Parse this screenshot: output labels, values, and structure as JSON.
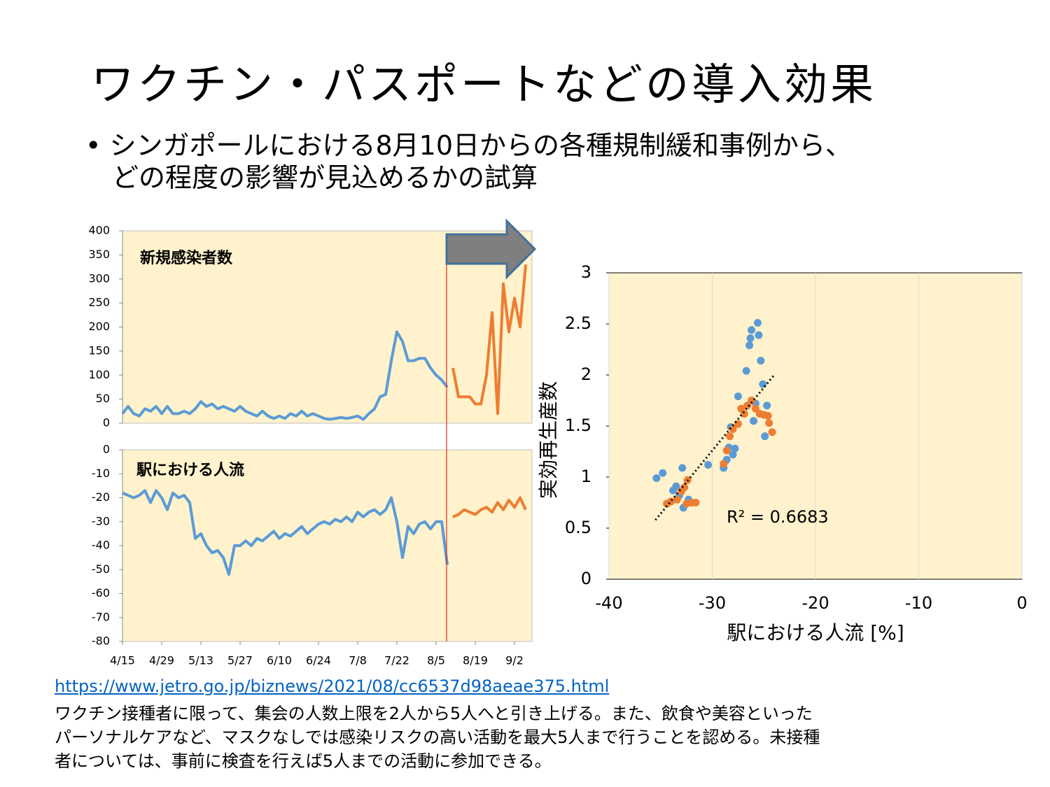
{
  "title": "ワクチン・パスポートなどの導入効果",
  "bullet": [
    "シンガポールにおける8月10日からの各種規制緩和事例から、",
    "どの程度の影響が見込めるかの試算"
  ],
  "link": "https://www.jetro.go.jp/biznews/2021/08/cc6537d98aeae375.html",
  "note": [
    "ワクチン接種者に限って、集会の人数上限を2人から5人へと引き上げる。また、飲食や美容といった",
    "パーソナルケアなど、マスクなしでは感染リスクの高い活動を最大5人まで行うことを認める。未接種",
    "者については、事前に検査を行えば5人までの活動に参加できる。"
  ],
  "chart_data": [
    {
      "type": "line",
      "title": "新規感染者数",
      "ylim": [
        0,
        400
      ],
      "yticks": [
        0,
        50,
        100,
        150,
        200,
        250,
        300,
        350,
        400
      ],
      "background": "#fff2cc",
      "series": [
        {
          "color": "#5b9bd5",
          "values": [
            20,
            35,
            20,
            15,
            30,
            25,
            35,
            20,
            35,
            20,
            20,
            25,
            20,
            30,
            45,
            35,
            40,
            30,
            35,
            30,
            25,
            35,
            25,
            20,
            15,
            25,
            15,
            10,
            15,
            10,
            20,
            15,
            25,
            15,
            20,
            15,
            10,
            8,
            10,
            12,
            10,
            12,
            15,
            8,
            20,
            30,
            55,
            60,
            130,
            190,
            170,
            130,
            130,
            135,
            135,
            115,
            100,
            90,
            75,
            null,
            null,
            null,
            null,
            null,
            null,
            null,
            null,
            null,
            null,
            null,
            null,
            null,
            null
          ]
        },
        {
          "color": "#ed7d31",
          "values": [
            null,
            null,
            null,
            null,
            null,
            null,
            null,
            null,
            null,
            null,
            null,
            null,
            null,
            null,
            null,
            null,
            null,
            null,
            null,
            null,
            null,
            null,
            null,
            null,
            null,
            null,
            null,
            null,
            null,
            null,
            null,
            null,
            null,
            null,
            null,
            null,
            null,
            null,
            null,
            null,
            null,
            null,
            null,
            null,
            null,
            null,
            null,
            null,
            null,
            null,
            null,
            null,
            null,
            null,
            null,
            null,
            null,
            null,
            null,
            115,
            55,
            55,
            55,
            40,
            40,
            100,
            230,
            20,
            290,
            190,
            260,
            200,
            330
          ]
        }
      ]
    },
    {
      "type": "line",
      "title": "駅における人流",
      "ylim": [
        -80,
        0
      ],
      "yticks": [
        -80,
        -70,
        -60,
        -50,
        -40,
        -30,
        -20,
        -10,
        0
      ],
      "background": "#fff2cc",
      "categories": [
        "4/15",
        null,
        null,
        null,
        null,
        null,
        null,
        "4/29",
        null,
        null,
        null,
        null,
        null,
        null,
        "5/13",
        null,
        null,
        null,
        null,
        null,
        null,
        "5/27",
        null,
        null,
        null,
        null,
        null,
        null,
        "6/10",
        null,
        null,
        null,
        null,
        null,
        null,
        "6/24",
        null,
        null,
        null,
        null,
        null,
        null,
        "7/8",
        null,
        null,
        null,
        null,
        null,
        null,
        "7/22",
        null,
        null,
        null,
        null,
        null,
        null,
        "8/5",
        null,
        null,
        null,
        null,
        null,
        null,
        "8/19",
        null,
        null,
        null,
        null,
        null,
        null,
        "9/2",
        null,
        null
      ],
      "series": [
        {
          "color": "#5b9bd5",
          "values": [
            -18,
            -19,
            -20,
            -19,
            -17,
            -22,
            -17,
            -20,
            -25,
            -18,
            -20,
            -19,
            -22,
            -37,
            -35,
            -40,
            -43,
            -42,
            -45,
            -52,
            -40,
            -40,
            -38,
            -40,
            -37,
            -38,
            -36,
            -34,
            -37,
            -35,
            -36,
            -34,
            -32,
            -35,
            -33,
            -31,
            -30,
            -31,
            -29,
            -30,
            -28,
            -30,
            -26,
            -28,
            -26,
            -25,
            -27,
            -25,
            -20,
            -30,
            -45,
            -32,
            -35,
            -31,
            -30,
            -33,
            -30,
            -30,
            -48,
            null,
            null,
            null,
            null,
            null,
            null,
            null,
            null,
            null,
            null,
            null,
            null,
            null,
            null
          ]
        },
        {
          "color": "#ed7d31",
          "values": [
            null,
            null,
            null,
            null,
            null,
            null,
            null,
            null,
            null,
            null,
            null,
            null,
            null,
            null,
            null,
            null,
            null,
            null,
            null,
            null,
            null,
            null,
            null,
            null,
            null,
            null,
            null,
            null,
            null,
            null,
            null,
            null,
            null,
            null,
            null,
            null,
            null,
            null,
            null,
            null,
            null,
            null,
            null,
            null,
            null,
            null,
            null,
            null,
            null,
            null,
            null,
            null,
            null,
            null,
            null,
            null,
            null,
            null,
            null,
            -28,
            -27,
            -25,
            -26,
            -27,
            -25,
            -24,
            -26,
            -22,
            -25,
            -21,
            -24,
            -20,
            -25
          ]
        }
      ]
    },
    {
      "type": "scatter",
      "x_label": "駅における人流 [%]",
      "y_label": "実効再生産数",
      "annotation": "R² = 0.6683",
      "background": "#fff2cc",
      "grid": "x",
      "xlim": [
        -40,
        0
      ],
      "xticks": [
        -40,
        -30,
        -20,
        -10,
        0
      ],
      "ylim": [
        0,
        3
      ],
      "yticks": [
        0,
        0.5,
        1,
        1.5,
        2,
        2.5,
        3
      ],
      "series": [
        {
          "color": "#5b9bd5",
          "x": [
            -35.4,
            -34.8,
            -33.8,
            -33.5,
            -33.2,
            -32.9,
            -32.8,
            -32.3,
            -30.4,
            -28.9,
            -28.6,
            -28.4,
            -28.2,
            -27.8,
            -28.0,
            -27.5,
            -26.7,
            -26.4,
            -26.3,
            -26.2,
            -25.6,
            -25.5,
            -25.3,
            -25.1,
            -24.7,
            -24.9,
            -26.0,
            -25.8
          ],
          "y": [
            0.99,
            1.04,
            0.87,
            0.91,
            0.82,
            1.09,
            0.7,
            0.78,
            1.12,
            1.09,
            1.17,
            1.29,
            1.49,
            1.28,
            1.22,
            1.79,
            2.04,
            2.29,
            2.36,
            2.44,
            2.51,
            2.39,
            2.14,
            1.91,
            1.7,
            1.4,
            1.55,
            1.72
          ]
        },
        {
          "color": "#ed7d31",
          "x": [
            -34.4,
            -34.0,
            -33.4,
            -33.0,
            -32.7,
            -32.4,
            -32.5,
            -32.0,
            -31.6,
            -28.9,
            -28.6,
            -28.3,
            -28.0,
            -27.5,
            -27.2,
            -26.6,
            -26.2,
            -25.8,
            -25.4,
            -25.0,
            -24.6,
            -24.5,
            -24.2,
            -26.9
          ],
          "y": [
            0.74,
            0.76,
            0.78,
            0.86,
            0.9,
            0.97,
            0.74,
            0.75,
            0.75,
            1.13,
            1.26,
            1.4,
            1.47,
            1.52,
            1.67,
            1.7,
            1.75,
            1.67,
            1.62,
            1.61,
            1.6,
            1.53,
            1.44,
            1.62
          ]
        }
      ],
      "trendline": {
        "x": [
          -35.5,
          -24
        ],
        "y": [
          0.58,
          2.0
        ]
      }
    }
  ]
}
